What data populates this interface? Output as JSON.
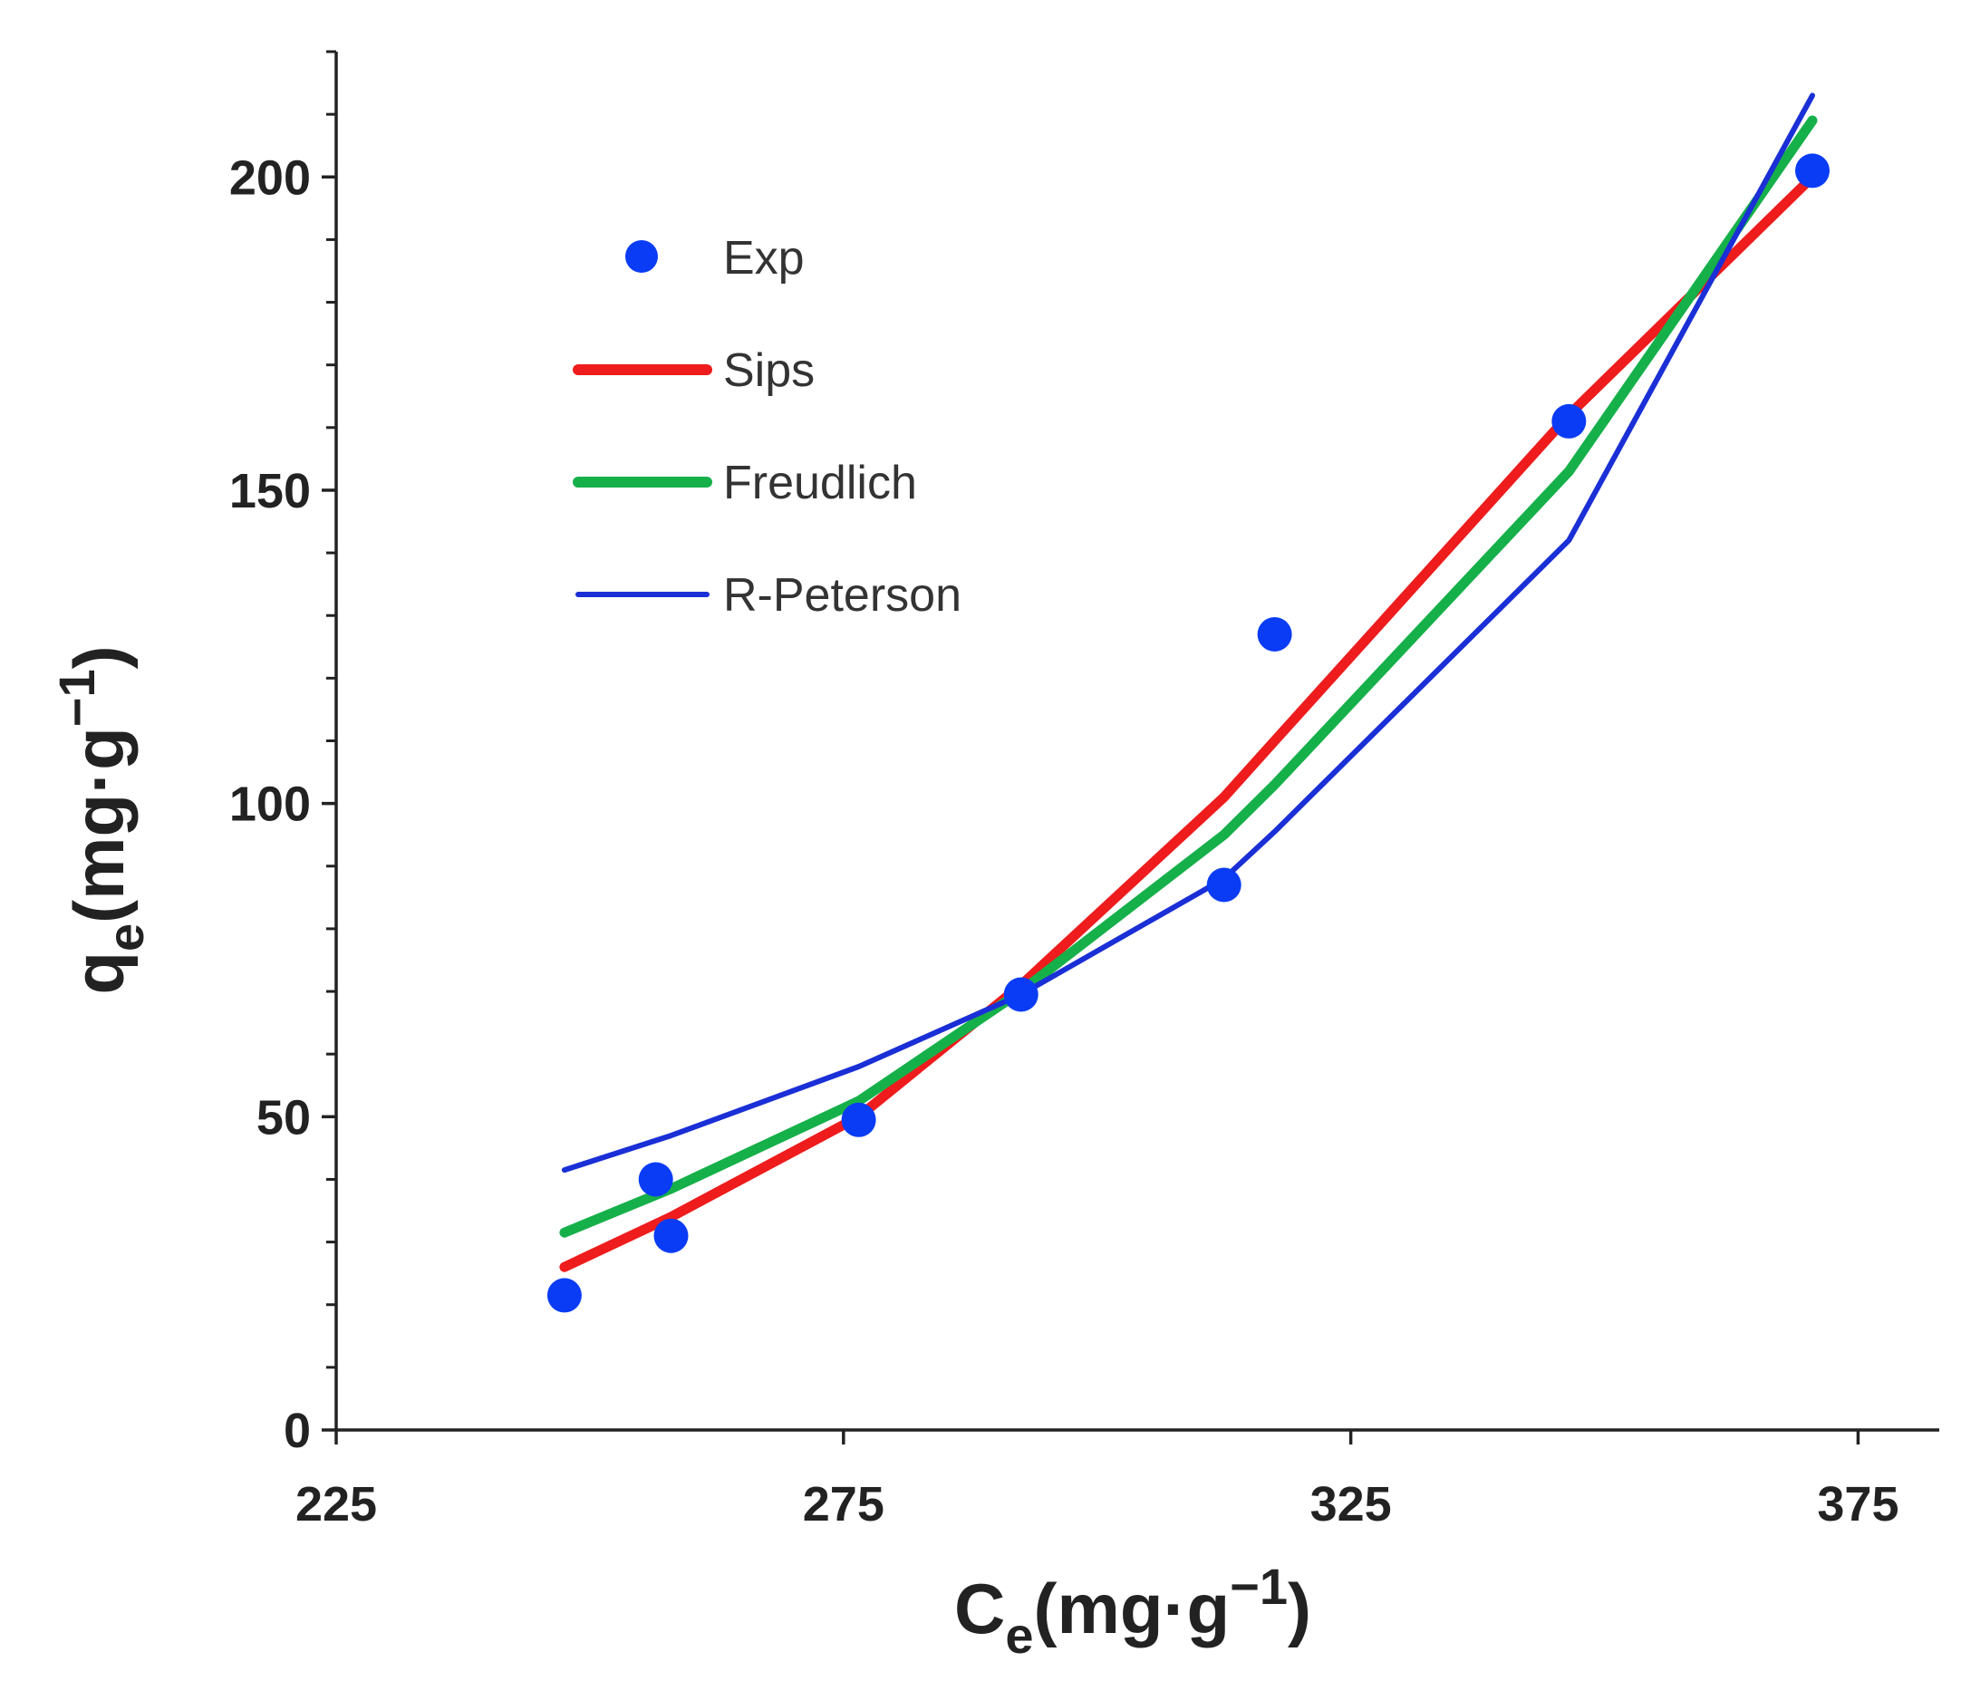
{
  "chart_data": {
    "type": "scatter",
    "title": "",
    "xlabel": {
      "main": "C",
      "sub": "e",
      "unit": "(mg·g",
      "sup": "−1",
      "close": ")"
    },
    "ylabel": {
      "main": "q",
      "sub": "e",
      "unit": "(mg·g",
      "sup": "−1",
      "close": ")"
    },
    "xlim": [
      225,
      383
    ],
    "ylim": [
      0,
      220
    ],
    "x_ticks": [
      "225",
      "275",
      "325",
      "375"
    ],
    "y_ticks": [
      "0",
      "50",
      "100",
      "150",
      "200"
    ],
    "grid": false,
    "legend_position": "top-left",
    "series": [
      {
        "name": "Exp",
        "kind": "points",
        "color": "#0a3cf5",
        "points": [
          [
            247.5,
            21.5
          ],
          [
            256.5,
            40
          ],
          [
            258,
            31
          ],
          [
            276.5,
            49.5
          ],
          [
            292.5,
            69.5
          ],
          [
            312.5,
            87
          ],
          [
            317.5,
            127
          ],
          [
            346.5,
            161
          ],
          [
            370.5,
            201
          ]
        ]
      },
      {
        "name": "Sips",
        "kind": "line",
        "color": "#ee1c1c",
        "points": [
          [
            247.5,
            26
          ],
          [
            258,
            34
          ],
          [
            276.5,
            50
          ],
          [
            292.5,
            71
          ],
          [
            312.5,
            101
          ],
          [
            317.5,
            110
          ],
          [
            346.5,
            162
          ],
          [
            370.5,
            200
          ]
        ]
      },
      {
        "name": "Freudlich",
        "kind": "line",
        "color": "#16b04a",
        "points": [
          [
            247.5,
            31.5
          ],
          [
            258,
            38.5
          ],
          [
            276.5,
            52.5
          ],
          [
            292.5,
            70
          ],
          [
            312.5,
            95
          ],
          [
            317.5,
            103
          ],
          [
            346.5,
            153
          ],
          [
            370.5,
            209
          ]
        ]
      },
      {
        "name": "R-Peterson",
        "kind": "line",
        "color": "#1a2fd6",
        "points": [
          [
            247.5,
            41.5
          ],
          [
            258,
            47
          ],
          [
            276.5,
            58
          ],
          [
            292.5,
            69.5
          ],
          [
            312.5,
            88
          ],
          [
            317.5,
            95.5
          ],
          [
            346.5,
            142
          ],
          [
            370.5,
            213
          ]
        ]
      }
    ]
  }
}
